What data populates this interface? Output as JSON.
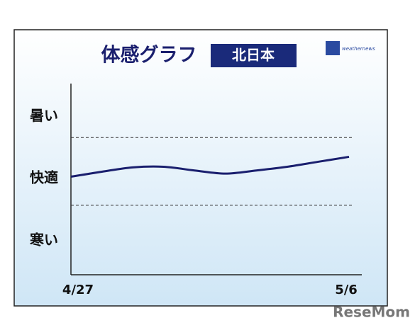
{
  "chart_data": {
    "type": "line",
    "title": "体感グラフ",
    "region": "北日本",
    "logo": "weathernews",
    "watermark": "ReseMom",
    "categories": [
      "4/27",
      null,
      null,
      null,
      null,
      null,
      null,
      null,
      null,
      "5/6"
    ],
    "series": [
      {
        "color": "#1a1f6e",
        "values": [
          0.03,
          0.11,
          0.18,
          0.19,
          0.13,
          0.08,
          0.13,
          0.19,
          0.27,
          0.35
        ]
      }
    ],
    "ylim": [
      -1.55,
      1.53
    ],
    "yticks": [
      {
        "value": 1,
        "label": "暑い"
      },
      {
        "value": 0,
        "label": "快適"
      },
      {
        "value": -1,
        "label": "寒い"
      }
    ],
    "hlines": [
      0.66,
      -0.43
    ]
  }
}
